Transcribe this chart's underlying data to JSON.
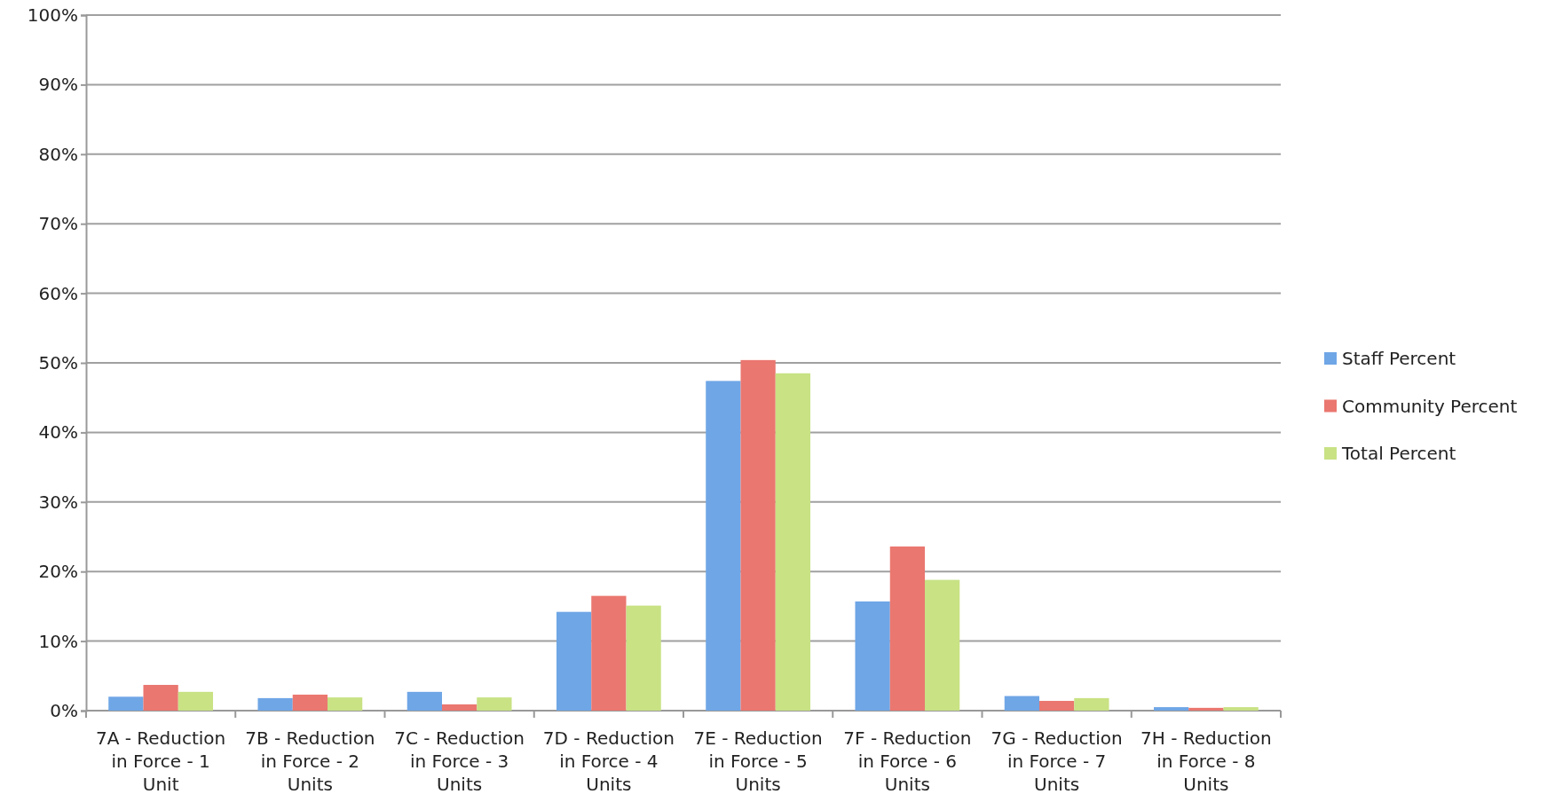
{
  "chart_data": {
    "type": "bar",
    "categories": [
      "7A - Reduction in Force - 1 Unit",
      "7B - Reduction in Force - 2 Units",
      "7C - Reduction in Force - 3 Units",
      "7D - Reduction in Force - 4 Units",
      "7E - Reduction in Force - 5 Units",
      "7F - Reduction in Force - 6 Units",
      "7G - Reduction in Force - 7 Units",
      "7H - Reduction in Force - 8 Units"
    ],
    "series": [
      {
        "name": "Staff Percent",
        "color": "#6fa6e6",
        "values": [
          2.0,
          1.8,
          2.7,
          14.2,
          47.4,
          15.7,
          2.1,
          0.5
        ]
      },
      {
        "name": "Community Percent",
        "color": "#ea7770",
        "values": [
          3.7,
          2.3,
          0.9,
          16.5,
          50.4,
          23.6,
          1.4,
          0.4
        ]
      },
      {
        "name": "Total Percent",
        "color": "#c8e284",
        "values": [
          2.7,
          1.9,
          1.9,
          15.1,
          48.5,
          18.8,
          1.8,
          0.5
        ]
      }
    ],
    "ylim": [
      0,
      100
    ],
    "yticks": [
      {
        "value": 0,
        "label": "0%"
      },
      {
        "value": 10,
        "label": "10%"
      },
      {
        "value": 20,
        "label": "20%"
      },
      {
        "value": 30,
        "label": "30%"
      },
      {
        "value": 40,
        "label": "40%"
      },
      {
        "value": 50,
        "label": "50%"
      },
      {
        "value": 60,
        "label": "60%"
      },
      {
        "value": 70,
        "label": "70%"
      },
      {
        "value": 80,
        "label": "80%"
      },
      {
        "value": 90,
        "label": "90%"
      },
      {
        "value": 100,
        "label": "100%"
      }
    ],
    "grid": "y",
    "legend": "right"
  }
}
